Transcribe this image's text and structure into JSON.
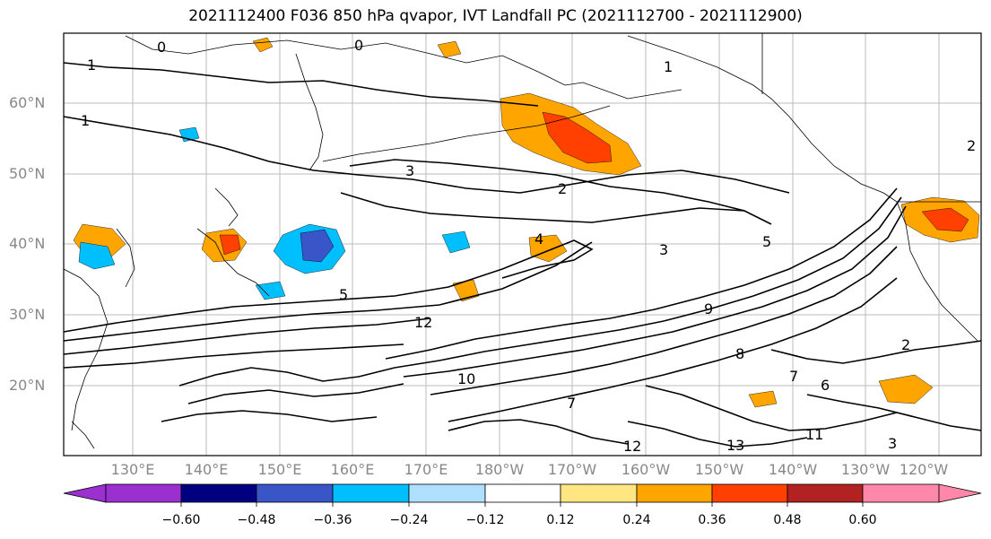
{
  "title": "2021112400 F036 850 hPa qvapor, IVT Landfall PC (2021112700 - 2021112900)",
  "latitude_labels": [
    "60°N",
    "50°N",
    "40°N",
    "30°N",
    "20°N"
  ],
  "longitude_labels": [
    "130°E",
    "140°E",
    "150°E",
    "160°E",
    "170°E",
    "180°W",
    "170°W",
    "160°W",
    "150°W",
    "140°W",
    "130°W",
    "120°W"
  ],
  "colorbar": {
    "ticks": [
      "−0.60",
      "−0.48",
      "−0.36",
      "−0.24",
      "−0.12",
      "0.12",
      "0.24",
      "0.36",
      "0.48",
      "0.60"
    ],
    "colors": [
      "#9b30d0",
      "#000080",
      "#3a55c8",
      "#00bfff",
      "#b0e0ff",
      "#ffffff",
      "#ffe680",
      "#ffa500",
      "#ff4000",
      "#b22222",
      "#ff88aa"
    ]
  },
  "contour_labels": [
    "0",
    "0",
    "1",
    "1",
    "3",
    "2",
    "4",
    "5",
    "5",
    "3",
    "2",
    "12",
    "10",
    "9",
    "8",
    "7",
    "6",
    "13",
    "12",
    "11",
    "1",
    "2",
    "3",
    "7"
  ],
  "colors": {
    "shading_positive": "#ffa500",
    "shading_strong": "#ff4000",
    "shading_negative": "#00bfff",
    "shading_neg_strong": "#3a55c8"
  }
}
